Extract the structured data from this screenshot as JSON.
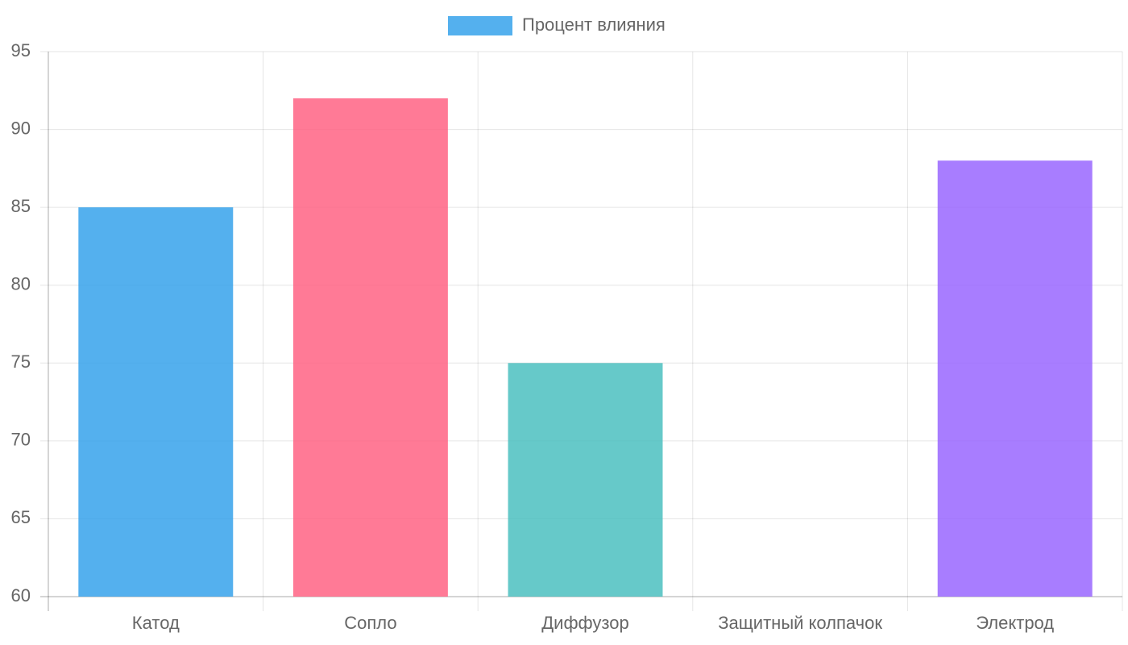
{
  "chart_data": {
    "type": "bar",
    "categories": [
      "Катод",
      "Сопло",
      "Диффузор",
      "Защитный колпачок",
      "Электрод"
    ],
    "series": [
      {
        "name": "Процент влияния",
        "color": "#36a2eb",
        "values": [
          85,
          92,
          75,
          null,
          88
        ]
      }
    ],
    "bar_colors": [
      "#36a2eb",
      "#ff6384",
      "#4bc0c0",
      null,
      "#9966ff"
    ],
    "ylim": [
      60,
      95
    ],
    "yticks": [
      60,
      65,
      70,
      75,
      80,
      85,
      90,
      95
    ],
    "grid": true,
    "legend": "top"
  }
}
